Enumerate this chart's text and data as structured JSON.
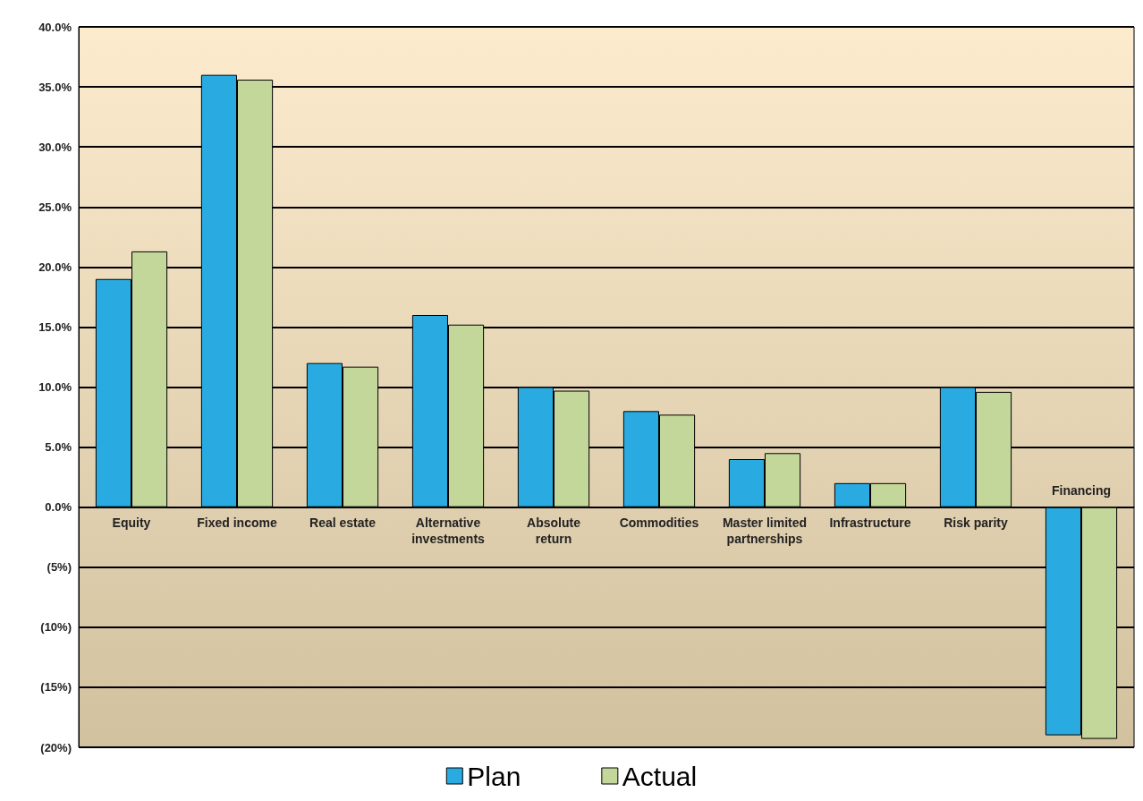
{
  "chart_data": {
    "type": "bar",
    "categories": [
      "Equity",
      "Fixed income",
      "Real estate",
      "Alternative\ninvestments",
      "Absolute\nreturn",
      "Commodities",
      "Master limited\npartnerships",
      "Infrastructure",
      "Risk parity",
      "Financing"
    ],
    "series": [
      {
        "name": "Plan",
        "color": "#29abe2",
        "values": [
          19,
          36,
          12,
          16,
          10,
          8,
          4,
          2,
          10,
          -19
        ]
      },
      {
        "name": "Actual",
        "color": "#c4d79b",
        "values": [
          21.3,
          35.6,
          11.7,
          15.2,
          9.7,
          7.7,
          4.5,
          2,
          9.6,
          -19.3
        ]
      }
    ],
    "ylim": [
      -20,
      40
    ],
    "yticks": [
      {
        "value": -20,
        "label": "(20%)"
      },
      {
        "value": -15,
        "label": "(15%)"
      },
      {
        "value": -10,
        "label": "(10%)"
      },
      {
        "value": -5,
        "label": "(5%)"
      },
      {
        "value": 0,
        "label": "0.0%"
      },
      {
        "value": 5,
        "label": "5.0%"
      },
      {
        "value": 10,
        "label": "10.0%"
      },
      {
        "value": 15,
        "label": "15.0%"
      },
      {
        "value": 20,
        "label": "20.0%"
      },
      {
        "value": 25,
        "label": "25.0%"
      },
      {
        "value": 30,
        "label": "30.0%"
      },
      {
        "value": 35,
        "label": "35.0%"
      },
      {
        "value": 40,
        "label": "40.0%"
      }
    ],
    "grid": "y",
    "legend": "bottom"
  }
}
